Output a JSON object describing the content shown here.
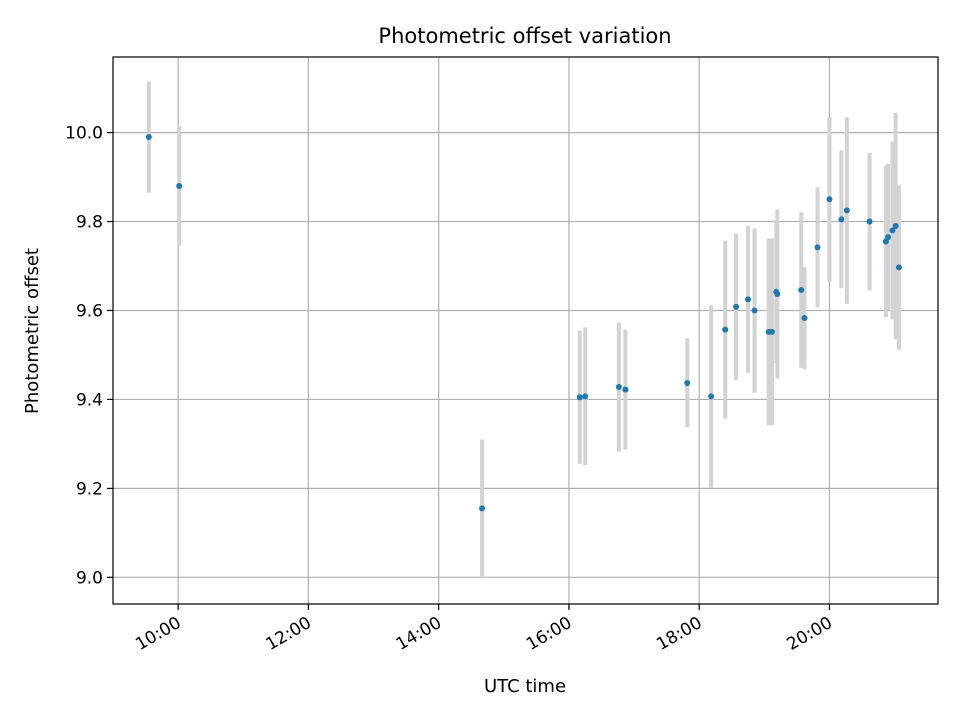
{
  "chart_data": {
    "type": "scatter",
    "title": "Photometric offset variation",
    "xlabel": "UTC time",
    "ylabel": "Photometric offset",
    "grid": true,
    "x_unit": "hours",
    "xlim": [
      "09:00",
      "21:40"
    ],
    "ylim": [
      8.94,
      10.17
    ],
    "x_ticks": [
      "10:00",
      "12:00",
      "14:00",
      "16:00",
      "18:00",
      "20:00"
    ],
    "y_ticks": [
      "9.0",
      "9.2",
      "9.4",
      "9.6",
      "9.8",
      "10.0"
    ],
    "marker_color": "#1f77b4",
    "errorbar_color": "#d3d3d3",
    "series": [
      {
        "points": [
          {
            "t": "09:33",
            "y": 9.99,
            "err": 0.125
          },
          {
            "t": "10:01",
            "y": 9.88,
            "err": 0.135
          },
          {
            "t": "14:40",
            "y": 9.155,
            "err": 0.155
          },
          {
            "t": "16:10",
            "y": 9.405,
            "err": 0.15
          },
          {
            "t": "16:15",
            "y": 9.407,
            "err": 0.155
          },
          {
            "t": "16:46",
            "y": 9.428,
            "err": 0.145
          },
          {
            "t": "16:52",
            "y": 9.422,
            "err": 0.135
          },
          {
            "t": "17:49",
            "y": 9.437,
            "err": 0.1
          },
          {
            "t": "18:11",
            "y": 9.407,
            "err": 0.205
          },
          {
            "t": "18:24",
            "y": 9.557,
            "err": 0.2
          },
          {
            "t": "18:34",
            "y": 9.608,
            "err": 0.165
          },
          {
            "t": "18:45",
            "y": 9.625,
            "err": 0.165
          },
          {
            "t": "18:51",
            "y": 9.6,
            "err": 0.185
          },
          {
            "t": "19:04",
            "y": 9.552,
            "err": 0.21
          },
          {
            "t": "19:07",
            "y": 9.552,
            "err": 0.21
          },
          {
            "t": "19:11",
            "y": 9.642,
            "err": 0.16
          },
          {
            "t": "19:12",
            "y": 9.637,
            "err": 0.19
          },
          {
            "t": "19:34",
            "y": 9.646,
            "err": 0.175
          },
          {
            "t": "19:37",
            "y": 9.583,
            "err": 0.115
          },
          {
            "t": "19:49",
            "y": 9.742,
            "err": 0.135
          },
          {
            "t": "20:00",
            "y": 9.85,
            "err": 0.185
          },
          {
            "t": "20:11",
            "y": 9.805,
            "err": 0.155
          },
          {
            "t": "20:16",
            "y": 9.825,
            "err": 0.21
          },
          {
            "t": "20:37",
            "y": 9.8,
            "err": 0.155
          },
          {
            "t": "20:52",
            "y": 9.755,
            "err": 0.17
          },
          {
            "t": "20:54",
            "y": 9.765,
            "err": 0.165
          },
          {
            "t": "20:58",
            "y": 9.78,
            "err": 0.2
          },
          {
            "t": "21:01",
            "y": 9.79,
            "err": 0.255
          },
          {
            "t": "21:04",
            "y": 9.697,
            "err": 0.185
          }
        ]
      }
    ]
  }
}
